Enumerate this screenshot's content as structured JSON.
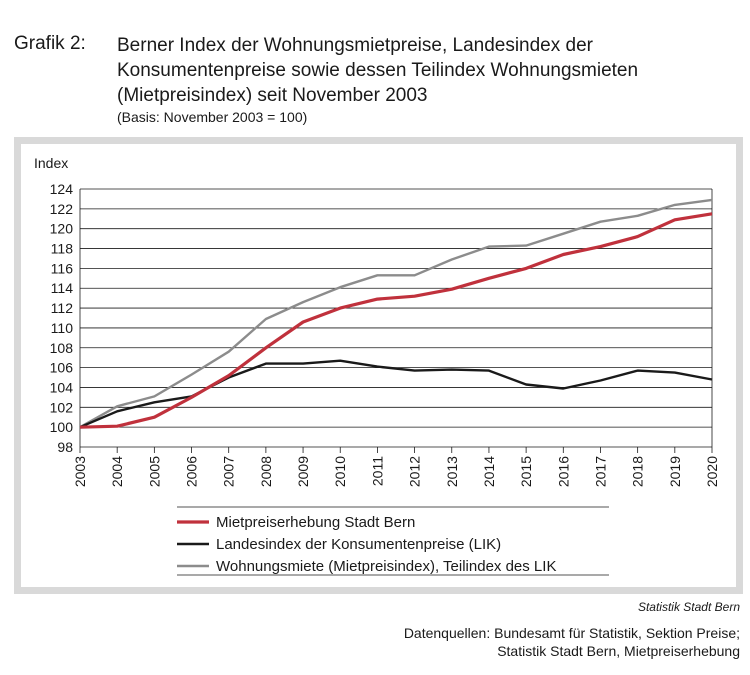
{
  "header": {
    "label": "Grafik 2:",
    "title_lines": [
      "Berner Index der Wohnungsmietpreise, Landesindex der",
      "Konsumentenpreise sowie dessen Teilindex Wohnungsmieten",
      "(Mietpreisindex) seit November 2003"
    ],
    "subtitle": "(Basis: November 2003 = 100)"
  },
  "chart_data": {
    "type": "line",
    "ylabel": "Index",
    "xlabel": "",
    "ylim": [
      98,
      124
    ],
    "yticks": [
      98,
      100,
      102,
      104,
      106,
      108,
      110,
      112,
      114,
      116,
      118,
      120,
      122,
      124
    ],
    "categories": [
      "2003",
      "2004",
      "2005",
      "2006",
      "2007",
      "2008",
      "2009",
      "2010",
      "2011",
      "2012",
      "2013",
      "2014",
      "2015",
      "2016",
      "2017",
      "2018",
      "2019",
      "2020"
    ],
    "grid": true,
    "legend_position": "bottom",
    "series": [
      {
        "name": "Mietpreiserhebung Stadt Bern",
        "color": "#c0313c",
        "values": [
          100,
          100.1,
          101,
          103,
          105.2,
          108,
          110.6,
          112,
          112.9,
          113.2,
          113.9,
          115,
          116,
          117.4,
          118.2,
          119.2,
          120.9,
          121.5
        ]
      },
      {
        "name": "Landesindex der Konsumentenpreise (LIK)",
        "color": "#1a1a1a",
        "values": [
          100,
          101.6,
          102.5,
          103.1,
          105,
          106.4,
          106.4,
          106.7,
          106.1,
          105.7,
          105.8,
          105.7,
          104.3,
          103.9,
          104.7,
          105.7,
          105.5,
          104.8
        ]
      },
      {
        "name": "Wohnungsmiete (Mietpreisindex), Teilindex des LIK",
        "color": "#8c8c8c",
        "values": [
          100,
          102.1,
          103.1,
          105.3,
          107.6,
          110.9,
          112.6,
          114.1,
          115.3,
          115.3,
          116.9,
          118.2,
          118.3,
          119.5,
          120.7,
          121.3,
          122.4,
          122.9
        ]
      }
    ]
  },
  "footer": {
    "credit": "Statistik Stadt Bern",
    "source_lines": [
      "Datenquellen: Bundesamt für Statistik, Sektion Preise;",
      "Statistik Stadt Bern, Mietpreiserhebung"
    ]
  }
}
